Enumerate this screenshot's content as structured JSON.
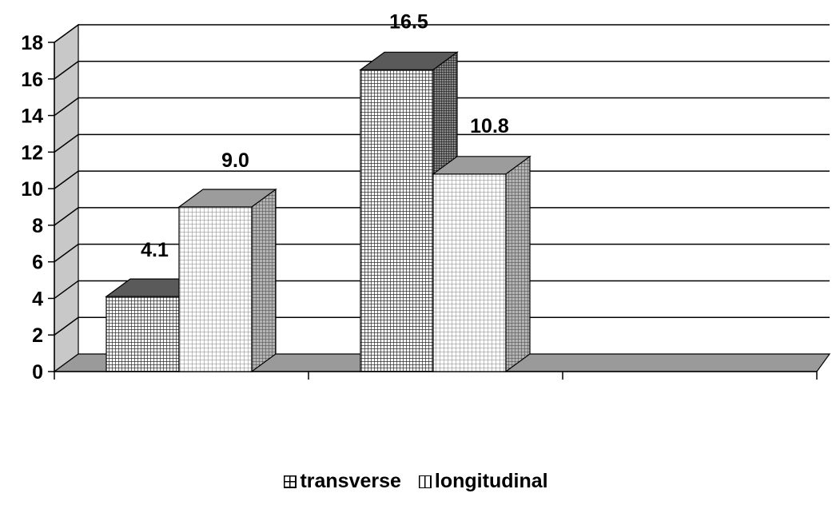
{
  "chart_data": {
    "type": "bar",
    "categories": [
      "",
      "",
      ""
    ],
    "series": [
      {
        "name": "transverse",
        "values": [
          4.1,
          16.5,
          null
        ],
        "labels": [
          "4.1",
          "16.5",
          ""
        ],
        "pattern": "dense-grid"
      },
      {
        "name": "longitudinal",
        "values": [
          9.0,
          10.8,
          null
        ],
        "labels": [
          "9.0",
          "10.8",
          ""
        ],
        "pattern": "light-grid"
      }
    ],
    "ylim": [
      0,
      18
    ],
    "yticks": [
      "0",
      "2",
      "4",
      "6",
      "8",
      "10",
      "12",
      "14",
      "16",
      "18"
    ],
    "grid": true,
    "legend_position": "bottom",
    "style": "3d-clustered-column",
    "colors": {
      "wall": "#c8c8c8",
      "floor": "#9a9a9a",
      "transverse": "#6e6e6e",
      "longitudinal": "#e4e4e4"
    }
  }
}
